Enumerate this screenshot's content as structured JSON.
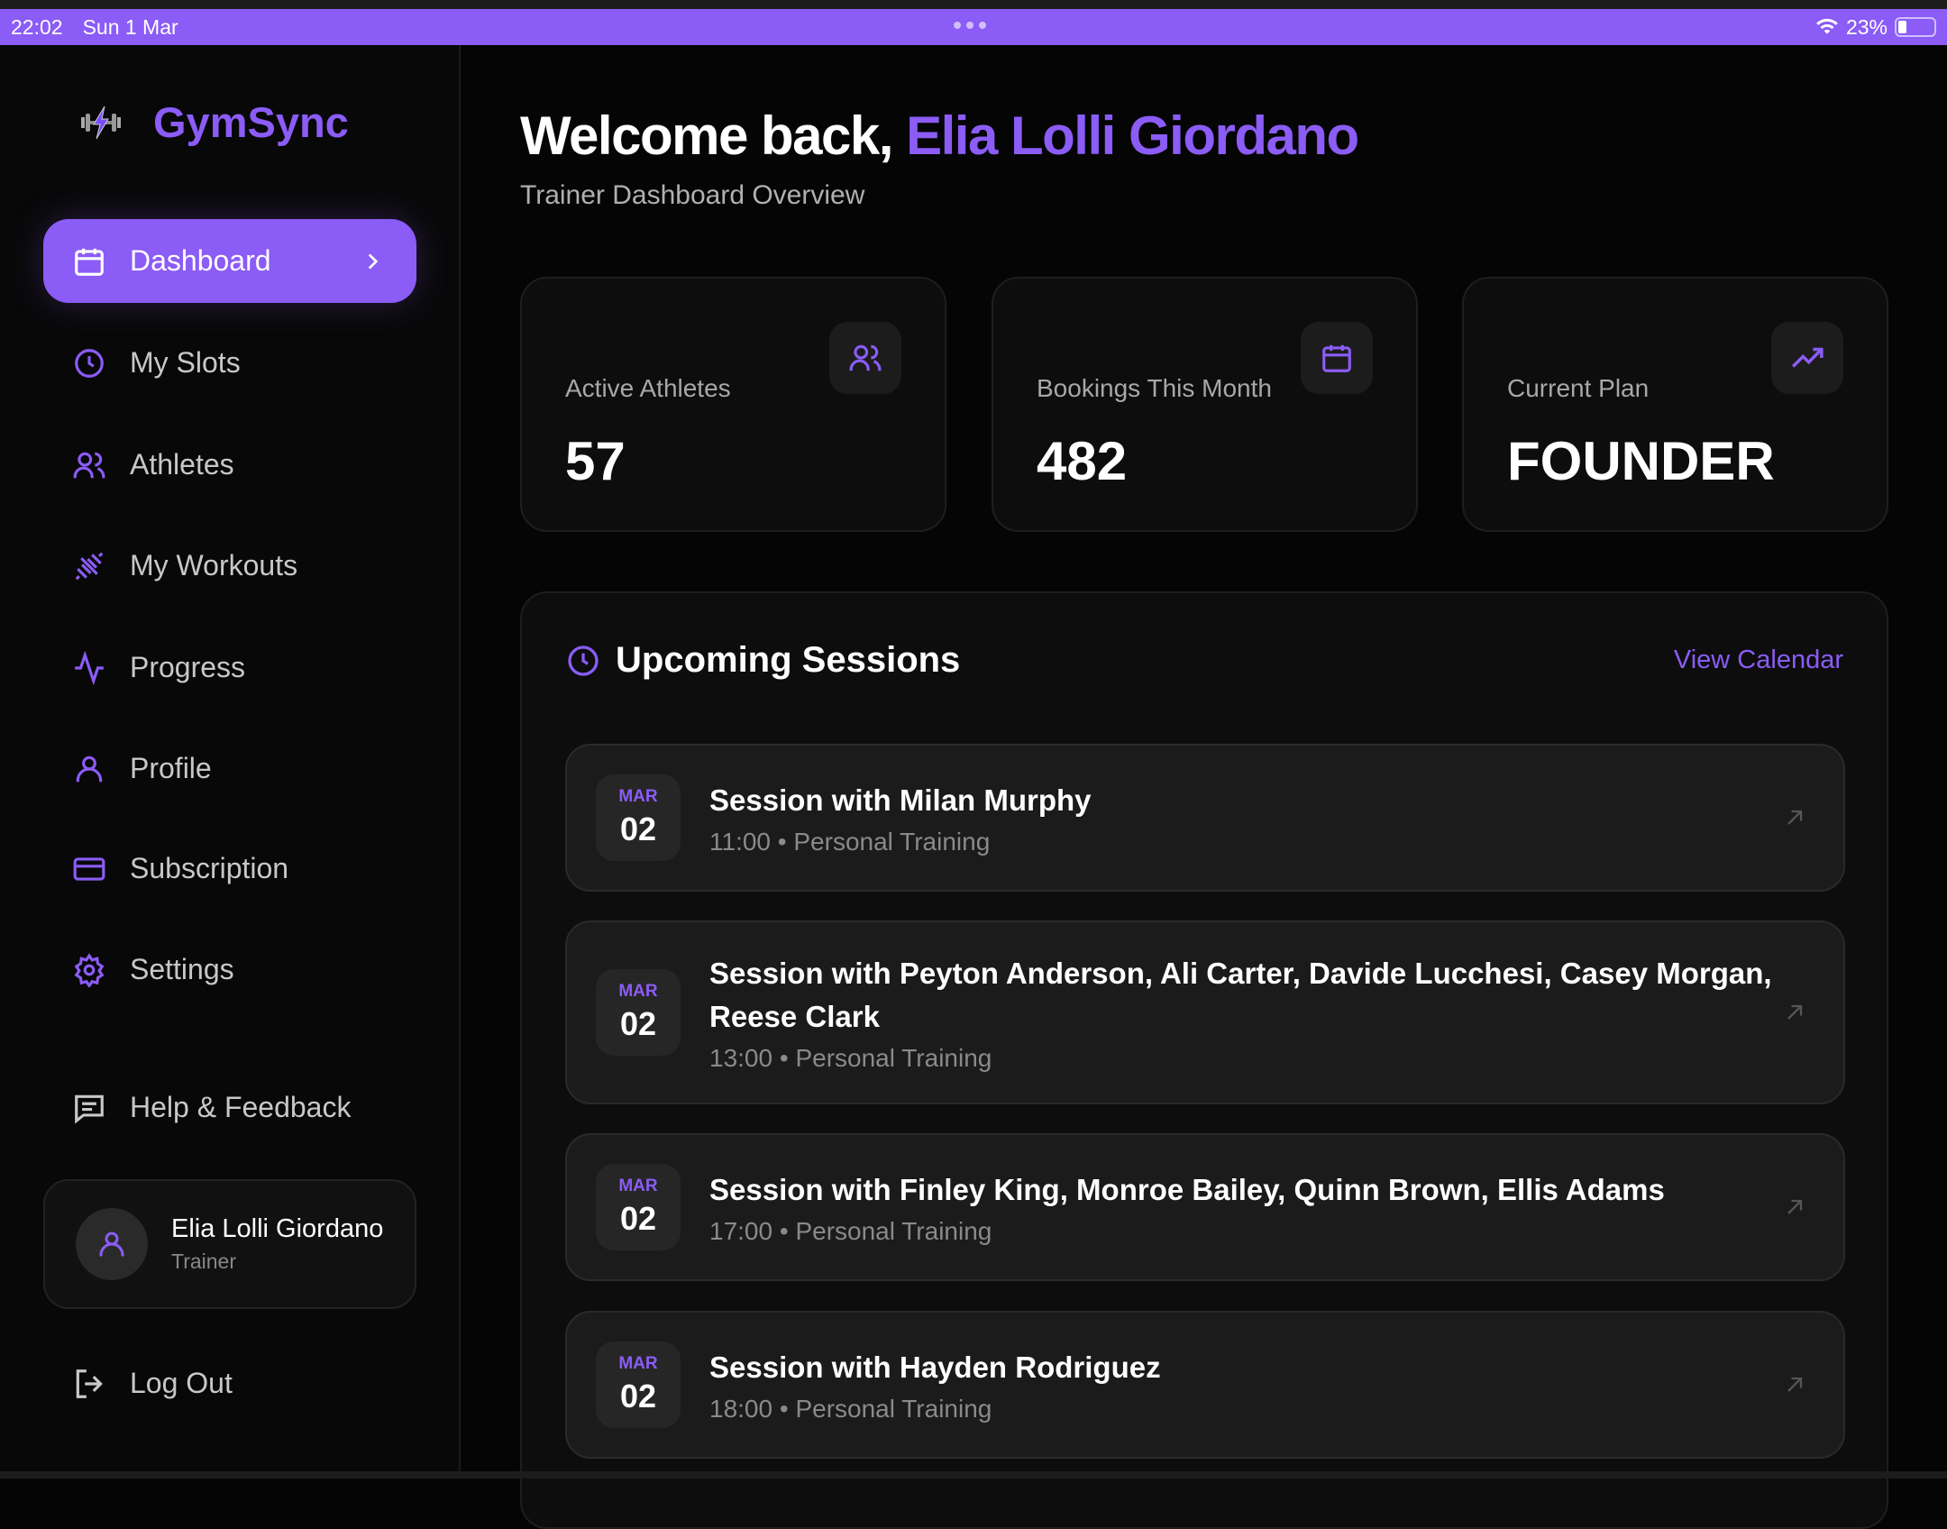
{
  "status_bar": {
    "time": "22:02",
    "date": "Sun 1 Mar",
    "battery": "23%",
    "battery_level": 0.23
  },
  "app": {
    "name": "GymSync"
  },
  "colors": {
    "accent": "#8b5cf6",
    "background": "#050505",
    "card": "#0d0d0d",
    "row": "#1b1b1b"
  },
  "sidebar": {
    "items": [
      {
        "label": "Dashboard",
        "icon": "calendar-icon",
        "active": true
      },
      {
        "label": "My Slots",
        "icon": "clock-icon"
      },
      {
        "label": "Athletes",
        "icon": "users-icon"
      },
      {
        "label": "My Workouts",
        "icon": "dumbbell-icon"
      },
      {
        "label": "Progress",
        "icon": "activity-icon"
      },
      {
        "label": "Profile",
        "icon": "user-icon"
      },
      {
        "label": "Subscription",
        "icon": "credit-card-icon"
      },
      {
        "label": "Settings",
        "icon": "gear-icon"
      }
    ],
    "help": {
      "label": "Help & Feedback",
      "icon": "message-square-icon"
    },
    "user": {
      "name": "Elia Lolli Giordano",
      "role": "Trainer"
    },
    "logout": {
      "label": "Log Out",
      "icon": "logout-icon"
    }
  },
  "header": {
    "welcome": "Welcome back,",
    "user_name": "Elia Lolli Giordano",
    "subtitle": "Trainer Dashboard Overview"
  },
  "stats": [
    {
      "label": "Active Athletes",
      "value": "57",
      "icon": "users-icon"
    },
    {
      "label": "Bookings This Month",
      "value": "482",
      "icon": "calendar-icon"
    },
    {
      "label": "Current Plan",
      "value": "FOUNDER",
      "icon": "trending-up-icon"
    }
  ],
  "sessions": {
    "title": "Upcoming Sessions",
    "view_calendar": "View Calendar",
    "items": [
      {
        "month": "MAR",
        "day": "02",
        "title": "Session with Milan Murphy",
        "time": "11:00",
        "type": "Personal Training"
      },
      {
        "month": "MAR",
        "day": "02",
        "title": "Session with Peyton Anderson, Ali Carter, Davide Lucchesi, Casey Morgan, Reese Clark",
        "time": "13:00",
        "type": "Personal Training"
      },
      {
        "month": "MAR",
        "day": "02",
        "title": "Session with Finley King, Monroe Bailey, Quinn Brown, Ellis Adams",
        "time": "17:00",
        "type": "Personal Training"
      },
      {
        "month": "MAR",
        "day": "02",
        "title": "Session with Hayden Rodriguez",
        "time": "18:00",
        "type": "Personal Training"
      }
    ]
  }
}
